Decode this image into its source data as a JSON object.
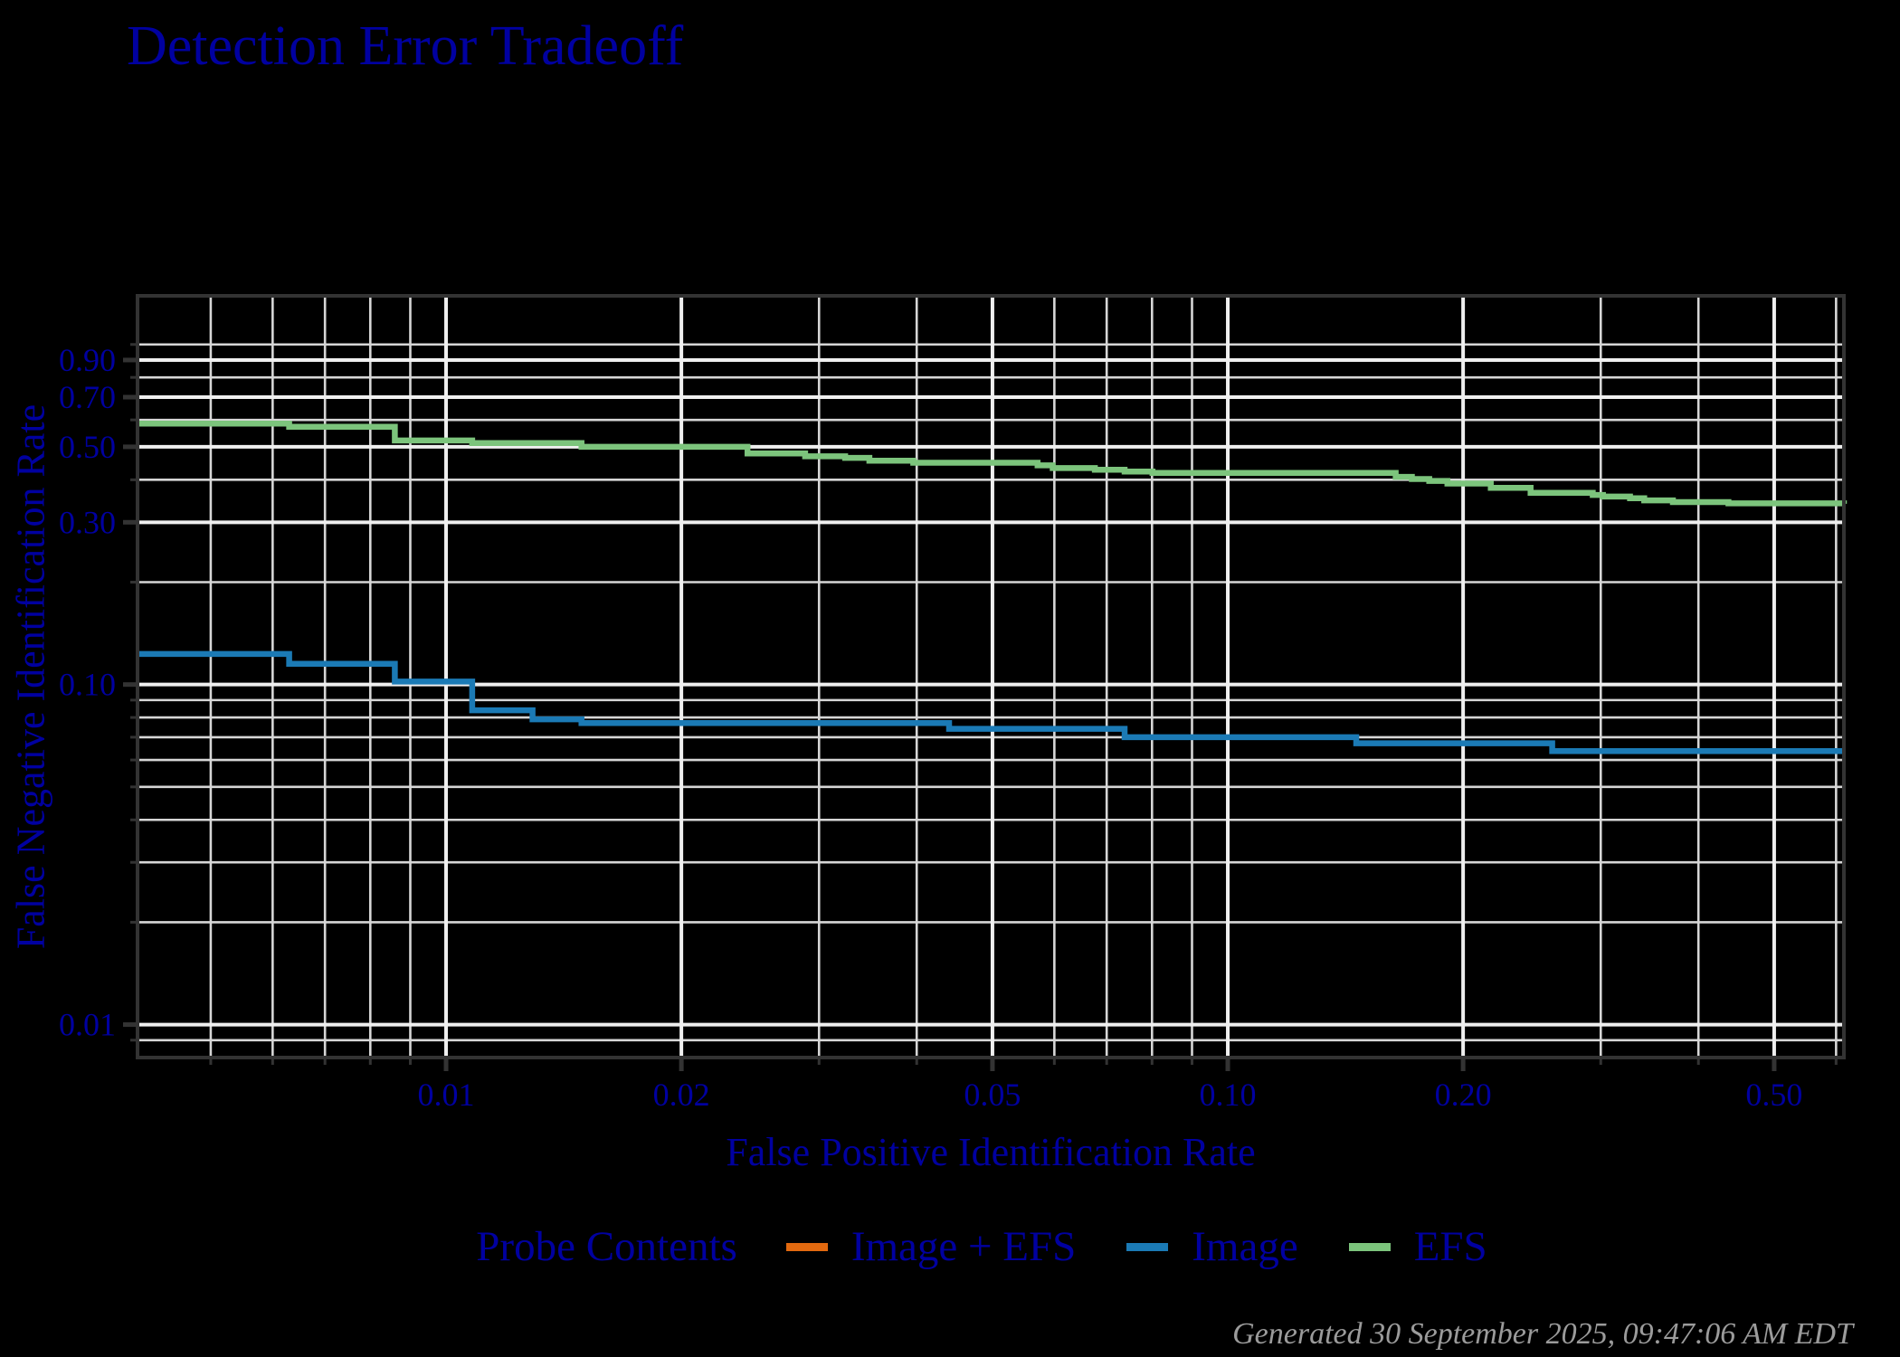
{
  "page": {
    "title": "Detection Error Tradeoff",
    "footer_timestamp": "Generated 30 September 2025, 09:47:06 AM EDT"
  },
  "colors": {
    "background": "#000000",
    "heading_text": "#0000A0",
    "axis_text": "#0000A0",
    "grid_major": "#EFEFEF",
    "grid_minor": "#D6D6D6",
    "axis_line": "#333333",
    "timestamp_text": "#9B9B9B"
  },
  "chart_data": {
    "type": "line",
    "line_style": "step-after",
    "title": "Detection Error Tradeoff",
    "xlabel": "False Positive Identification Rate",
    "ylabel": "False Negative Identification Rate",
    "x_scale": "log",
    "y_scale": "log",
    "xlim": [
      0.00403,
      0.614
    ],
    "ylim": [
      0.008,
      1.39
    ],
    "grid": true,
    "x_ticks": {
      "major": [
        0.01,
        0.02,
        0.05,
        0.1,
        0.2,
        0.5
      ],
      "major_labels": [
        "0.01",
        "0.02",
        "0.05",
        "0.10",
        "0.20",
        "0.50"
      ],
      "minor": [
        0.005,
        0.006,
        0.007,
        0.008,
        0.009,
        0.03,
        0.04,
        0.06,
        0.07,
        0.08,
        0.09,
        0.3,
        0.4,
        0.6
      ]
    },
    "y_ticks": {
      "major": [
        0.9,
        0.7,
        0.5,
        0.3,
        0.1,
        0.01
      ],
      "major_labels": [
        "0.90",
        "0.70",
        "0.50",
        "0.30",
        "0.10",
        "0.01"
      ],
      "minor": [
        1.0,
        0.8,
        0.6,
        0.4,
        0.2,
        0.09,
        0.08,
        0.07,
        0.06,
        0.05,
        0.04,
        0.03,
        0.02,
        0.009
      ]
    },
    "legend": {
      "title": "Probe Contents",
      "position": "bottom"
    },
    "series": [
      {
        "name": "Image + EFS",
        "color": "#E2690F",
        "visible_in_plot": false,
        "points": []
      },
      {
        "name": "Image",
        "color": "#1B7AB5",
        "visible_in_plot": true,
        "points": [
          [
            0.00403,
            0.123
          ],
          [
            0.0063,
            0.115
          ],
          [
            0.0086,
            0.102
          ],
          [
            0.0108,
            0.084
          ],
          [
            0.0129,
            0.079
          ],
          [
            0.0149,
            0.077
          ],
          [
            0.044,
            0.0741
          ],
          [
            0.0738,
            0.07
          ],
          [
            0.146,
            0.0672
          ],
          [
            0.26,
            0.0637
          ],
          [
            0.614,
            0.0637
          ]
        ]
      },
      {
        "name": "EFS",
        "color": "#7CC47C",
        "visible_in_plot": true,
        "points": [
          [
            0.00403,
            0.585
          ],
          [
            0.0063,
            0.573
          ],
          [
            0.0086,
            0.522
          ],
          [
            0.0108,
            0.513
          ],
          [
            0.0149,
            0.5
          ],
          [
            0.0243,
            0.478
          ],
          [
            0.0288,
            0.469
          ],
          [
            0.0324,
            0.464
          ],
          [
            0.0348,
            0.455
          ],
          [
            0.0396,
            0.449
          ],
          [
            0.0571,
            0.441
          ],
          [
            0.0597,
            0.433
          ],
          [
            0.0676,
            0.428
          ],
          [
            0.0738,
            0.423
          ],
          [
            0.0801,
            0.419
          ],
          [
            0.164,
            0.408
          ],
          [
            0.172,
            0.402
          ],
          [
            0.181,
            0.397
          ],
          [
            0.191,
            0.39
          ],
          [
            0.217,
            0.379
          ],
          [
            0.244,
            0.366
          ],
          [
            0.293,
            0.361
          ],
          [
            0.302,
            0.357
          ],
          [
            0.327,
            0.353
          ],
          [
            0.341,
            0.348
          ],
          [
            0.371,
            0.344
          ],
          [
            0.437,
            0.341
          ],
          [
            0.614,
            0.34
          ]
        ]
      }
    ]
  }
}
